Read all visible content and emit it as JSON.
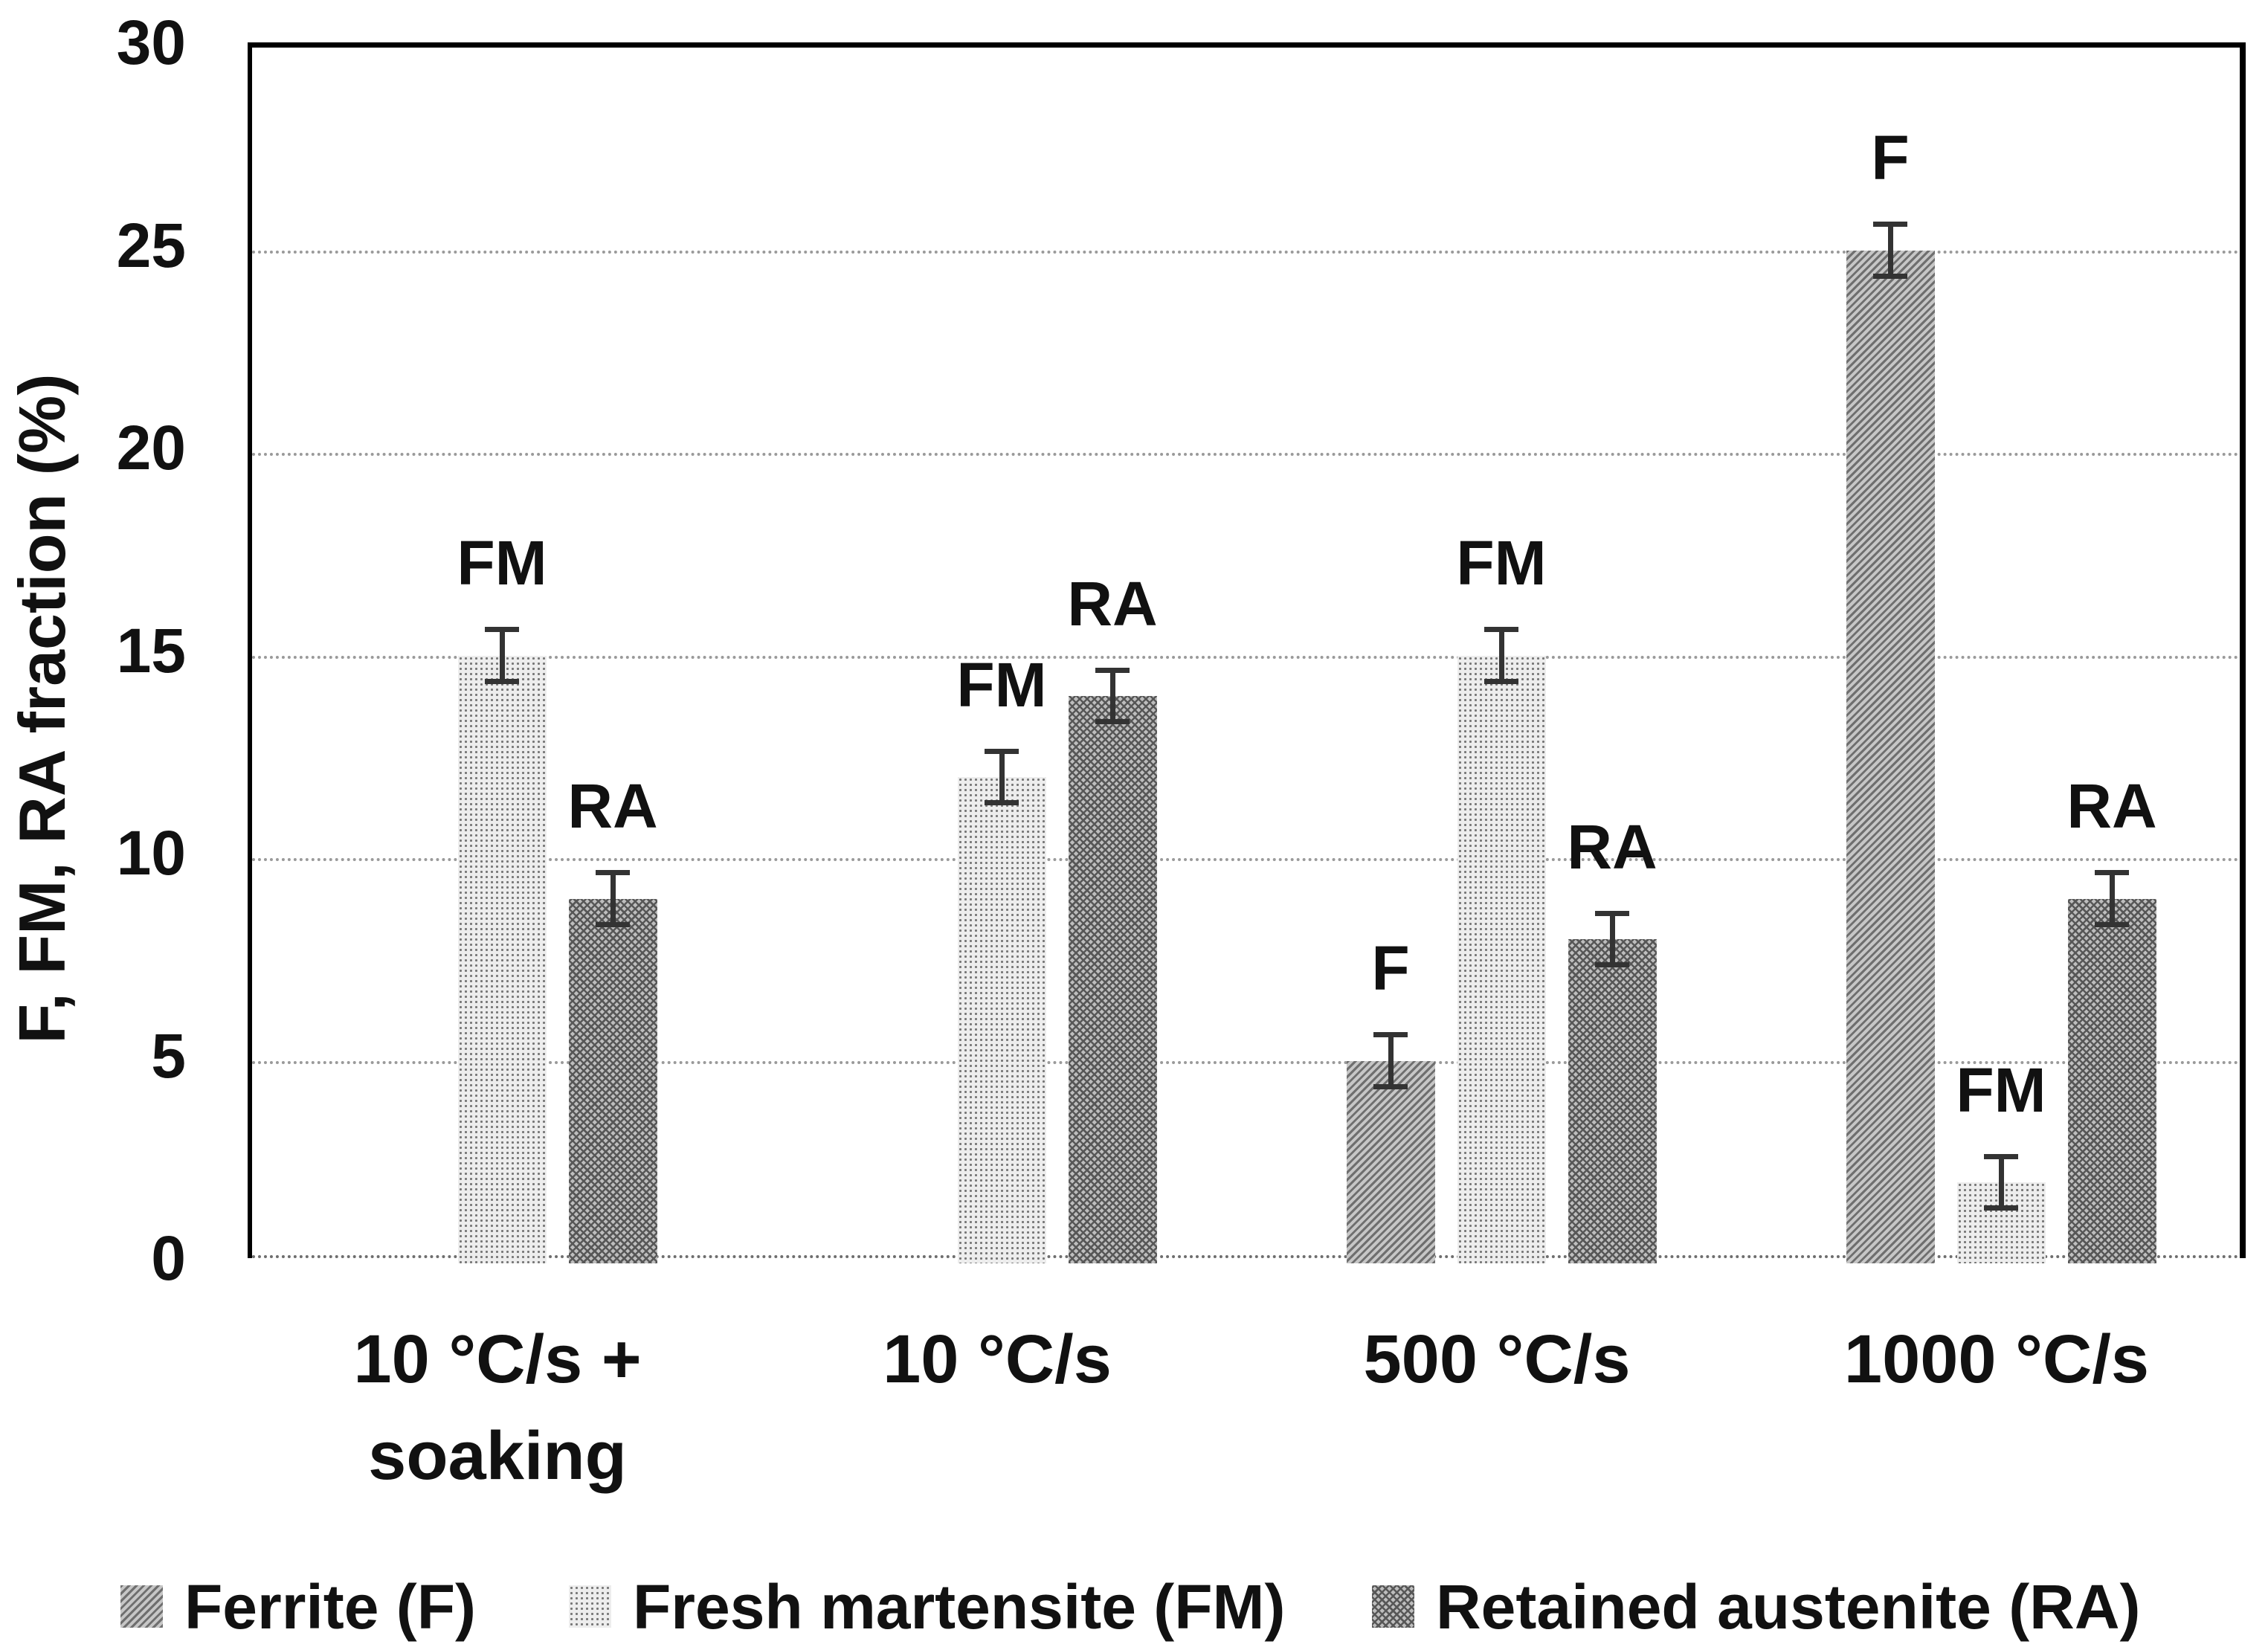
{
  "figure": {
    "background": "#ffffff"
  },
  "chart_data": {
    "type": "bar",
    "title": "",
    "xlabel": "",
    "ylabel": "F, FM, RA fraction (%)",
    "ylim": [
      0,
      30
    ],
    "yticks": [
      0,
      5,
      10,
      15,
      20,
      25,
      30
    ],
    "grid": "horizontal dotted gridlines at 5,10,15,20,25; solid black border top/left/right",
    "legend_position": "bottom",
    "categories": [
      "10 °C/s + soaking",
      "10 °C/s",
      "500 °C/s",
      "1000 °C/s"
    ],
    "category_label_lines": [
      [
        "10 °C/s +",
        "soaking"
      ],
      [
        "10 °C/s"
      ],
      [
        "500 °C/s"
      ],
      [
        "1000 °C/s"
      ]
    ],
    "series": [
      {
        "name": "Ferrite (F)",
        "short": "F",
        "values": [
          null,
          null,
          5,
          25
        ],
        "errors": [
          null,
          null,
          0.7,
          0.7
        ],
        "color": "#a6a6a6",
        "pattern": "diagonal-hatch"
      },
      {
        "name": "Fresh martensite (FM)",
        "short": "FM",
        "values": [
          15,
          12,
          15,
          2
        ],
        "errors": [
          0.7,
          0.7,
          0.7,
          0.7
        ],
        "color": "#dcdcdc",
        "pattern": "dots"
      },
      {
        "name": "Retained austenite (RA)",
        "short": "RA",
        "values": [
          9,
          14,
          8,
          9
        ],
        "errors": [
          0.7,
          0.7,
          0.7,
          0.7
        ],
        "color": "#8f8f8f",
        "pattern": "cross-hatch"
      }
    ],
    "bar_top_labels": "each bar is labeled above its error bar with the series short code (F, FM, RA)"
  }
}
